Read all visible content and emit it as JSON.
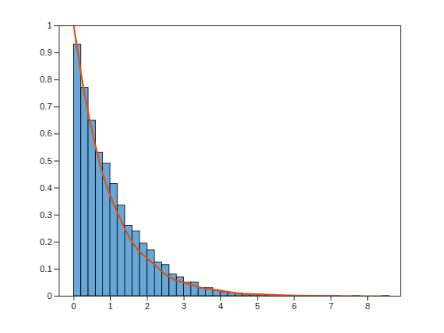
{
  "chart_data": {
    "type": "histogram",
    "bins": [
      0,
      0.2,
      0.4,
      0.6,
      0.8,
      1.0,
      1.2,
      1.4,
      1.6,
      1.8,
      2.0,
      2.2,
      2.4,
      2.6,
      2.8,
      3.0,
      3.2,
      3.4,
      3.6,
      3.8,
      4.0,
      4.2,
      4.4,
      4.6,
      4.8,
      5.0,
      5.2,
      5.4,
      5.6,
      5.8,
      6.0,
      6.2,
      6.4,
      6.6,
      6.8,
      7.0,
      7.2,
      7.4,
      7.6,
      7.8,
      8.0,
      8.2,
      8.4,
      8.6
    ],
    "values": [
      0.93,
      0.77,
      0.65,
      0.53,
      0.49,
      0.415,
      0.335,
      0.26,
      0.24,
      0.195,
      0.17,
      0.125,
      0.115,
      0.08,
      0.07,
      0.05,
      0.05,
      0.03,
      0.03,
      0.02,
      0.015,
      0.012,
      0.01,
      0.007,
      0.005,
      0.004,
      0.003,
      0.003,
      0.002,
      0.002,
      0.001,
      0.001,
      0.001,
      0.0005,
      0.0005,
      0.0005,
      0,
      0,
      0.0005,
      0,
      0,
      0,
      0.0005
    ],
    "color": "#68a8d8",
    "series": [
      {
        "type": "line",
        "color": "#d95319",
        "x": [
          0,
          0.25,
          0.5,
          0.75,
          1,
          1.25,
          1.5,
          1.75,
          2,
          2.25,
          2.5,
          2.75,
          3,
          3.5,
          4,
          4.5,
          5,
          5.5,
          6,
          7,
          8,
          8.5
        ],
        "values": [
          1,
          0.78,
          0.61,
          0.47,
          0.37,
          0.29,
          0.22,
          0.17,
          0.14,
          0.11,
          0.08,
          0.06,
          0.05,
          0.03,
          0.02,
          0.01,
          0.007,
          0.004,
          0.002,
          0.001,
          0,
          0
        ]
      }
    ],
    "xlim": [
      -0.4,
      8.9
    ],
    "ylim": [
      0,
      1
    ],
    "xticks": [
      0,
      1,
      2,
      3,
      4,
      5,
      6,
      7,
      8
    ],
    "yticks": [
      0,
      0.1,
      0.2,
      0.3,
      0.4,
      0.5,
      0.6,
      0.7,
      0.8,
      0.9,
      1
    ],
    "grid": false
  }
}
